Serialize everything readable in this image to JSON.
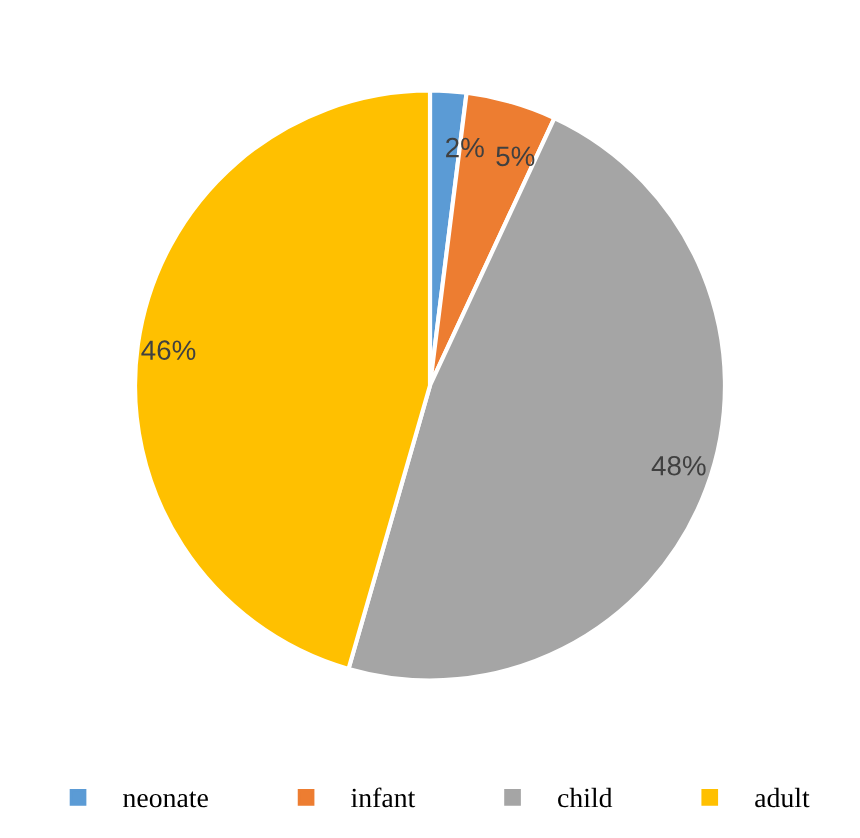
{
  "chart_data": {
    "type": "pie",
    "categories": [
      "neonate",
      "infant",
      "child",
      "adult"
    ],
    "values": [
      2,
      5,
      48,
      46
    ],
    "colors": [
      "#5b9bd5",
      "#ed7d31",
      "#a5a5a5",
      "#ffc000"
    ],
    "value_labels": [
      "2%",
      "5%",
      "48%",
      "46%"
    ],
    "legend": "bottom"
  }
}
